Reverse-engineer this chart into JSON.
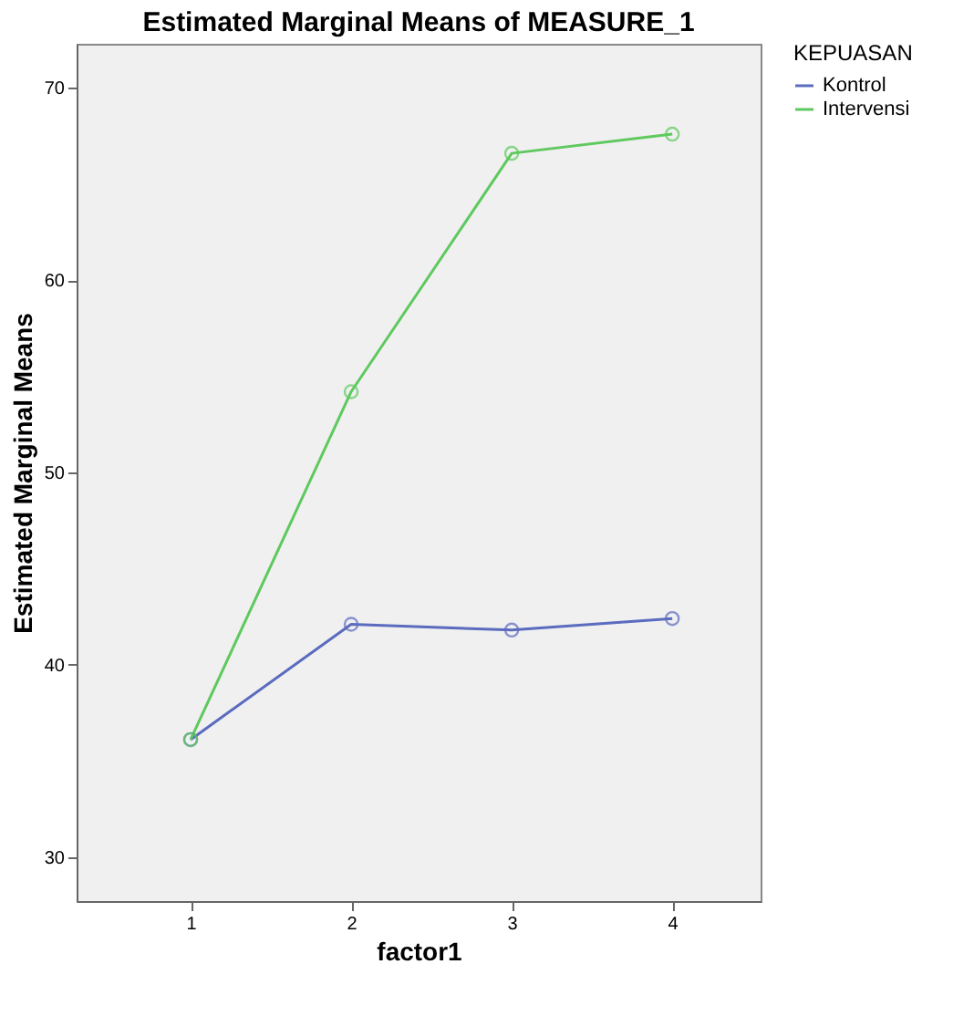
{
  "chart_data": {
    "type": "line",
    "title": "Estimated Marginal Means of MEASURE_1",
    "xlabel": "factor1",
    "ylabel": "Estimated Marginal Means",
    "legend_title": "KEPUASAN",
    "x": [
      1,
      2,
      3,
      4
    ],
    "series": [
      {
        "name": "Kontrol",
        "color": "#5b6bbf",
        "values": [
          36.1,
          42.1,
          41.8,
          42.4
        ]
      },
      {
        "name": "Intervensi",
        "color": "#5ec95e",
        "values": [
          36.1,
          54.2,
          66.6,
          67.6
        ]
      }
    ],
    "xlim": [
      0.29,
      4.55
    ],
    "xticks": [
      1,
      2,
      3,
      4
    ],
    "ylim": [
      27.7,
      72.3
    ],
    "yticks": [
      30,
      40,
      50,
      60,
      70
    ],
    "grid": false,
    "legend": "top right",
    "marker": "circle",
    "line_style": "solid"
  }
}
